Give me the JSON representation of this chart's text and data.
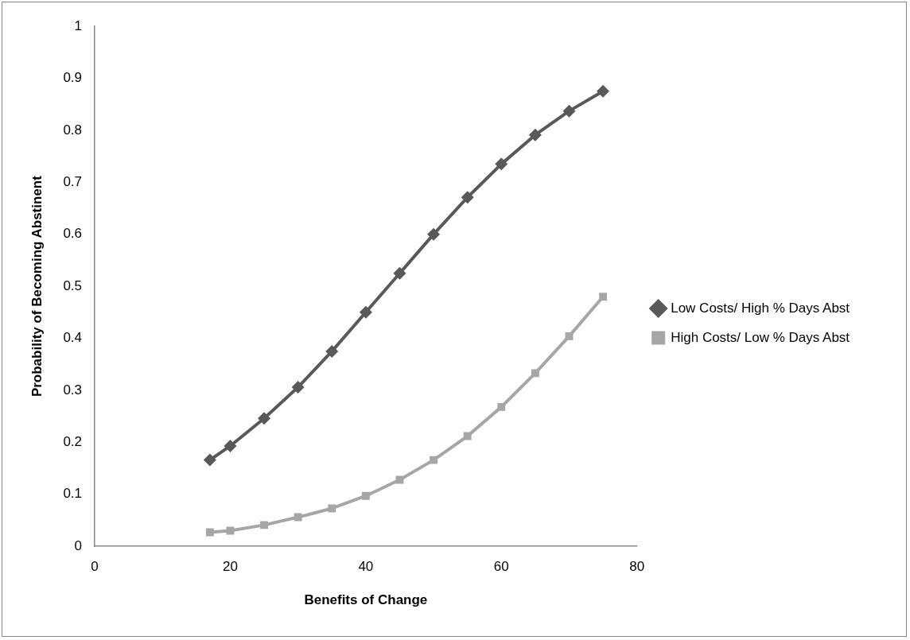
{
  "chart_data": {
    "type": "line",
    "xlabel": "Benefits of Change",
    "ylabel": "Probability of Becoming Abstinent",
    "x": [
      17,
      20,
      25,
      30,
      35,
      40,
      45,
      50,
      55,
      60,
      65,
      70,
      75
    ],
    "series": [
      {
        "name": "Low Costs/ High % Days Abst",
        "color": "#595959",
        "marker": "diamond",
        "values": [
          0.166,
          0.193,
          0.246,
          0.306,
          0.375,
          0.45,
          0.525,
          0.6,
          0.671,
          0.735,
          0.791,
          0.837,
          0.875
        ]
      },
      {
        "name": "High Costs/ Low % Days Abst",
        "color": "#a6a6a6",
        "marker": "square",
        "values": [
          0.027,
          0.03,
          0.041,
          0.056,
          0.073,
          0.097,
          0.128,
          0.166,
          0.212,
          0.268,
          0.333,
          0.404,
          0.48
        ]
      }
    ],
    "xlim": [
      0,
      80
    ],
    "xticks": [
      0,
      20,
      40,
      60,
      80
    ],
    "ylim": [
      0,
      1
    ],
    "yticks": [
      0,
      0.1,
      0.2,
      0.3,
      0.4,
      0.5,
      0.6,
      0.7,
      0.8,
      0.9,
      1
    ],
    "grid": false,
    "legend": "right",
    "line_style": "solid"
  }
}
